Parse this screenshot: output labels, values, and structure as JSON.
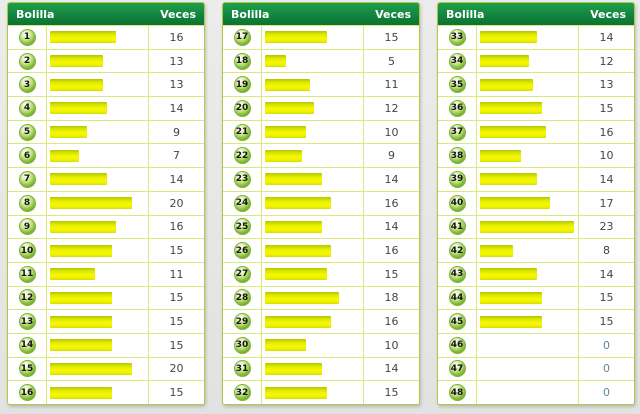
{
  "headers": {
    "ball": "Bolilla",
    "count": "Veces"
  },
  "colors": {
    "header_green_top": "#1fa04c",
    "header_green_bottom": "#0c7231",
    "table_border": "#aecb3d",
    "row_divider": "#d9e97e",
    "bar_yellow": "#f6f600",
    "bar_yellow_dark": "#b2c600",
    "ball_green": "#8cc840",
    "value_text": "#454545",
    "zero_value_text": "#5a8a9c",
    "header_text": "#ffffff",
    "background": "#e8e8e8"
  },
  "chart_data": {
    "type": "bar",
    "orientation": "horizontal",
    "title": "",
    "xlabel": "Bolilla",
    "ylabel": "Veces",
    "grid": false,
    "legend": false,
    "value_range": [
      0,
      23
    ],
    "layout_note": "48 balls split across 3 tables of 16 rows",
    "categories": [
      1,
      2,
      3,
      4,
      5,
      6,
      7,
      8,
      9,
      10,
      11,
      12,
      13,
      14,
      15,
      16,
      17,
      18,
      19,
      20,
      21,
      22,
      23,
      24,
      25,
      26,
      27,
      28,
      29,
      30,
      31,
      32,
      33,
      34,
      35,
      36,
      37,
      38,
      39,
      40,
      41,
      42,
      43,
      44,
      45,
      46,
      47,
      48
    ],
    "values": [
      16,
      13,
      13,
      14,
      9,
      7,
      14,
      20,
      16,
      15,
      11,
      15,
      15,
      15,
      20,
      15,
      15,
      5,
      11,
      12,
      10,
      9,
      14,
      16,
      14,
      16,
      15,
      18,
      16,
      10,
      14,
      15,
      14,
      12,
      13,
      15,
      16,
      10,
      14,
      17,
      23,
      8,
      14,
      15,
      15,
      0,
      0,
      0
    ]
  }
}
